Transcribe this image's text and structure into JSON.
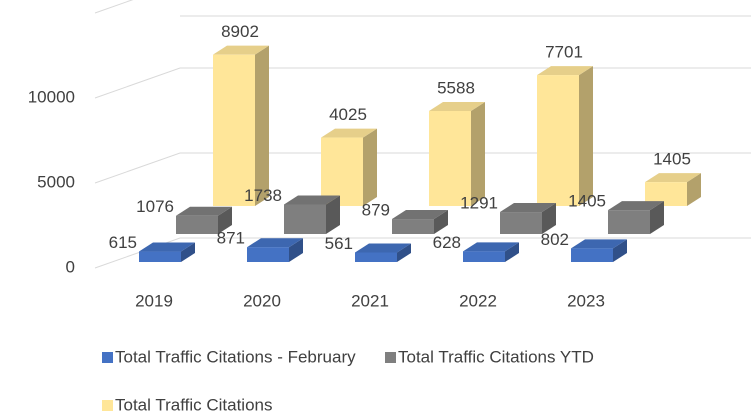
{
  "chart_data": {
    "type": "bar3d",
    "categories": [
      "2019",
      "2020",
      "2021",
      "2022",
      "2023"
    ],
    "series": [
      {
        "name": "Total Traffic Citations - February",
        "color": "#4472c4",
        "values": [
          615,
          871,
          561,
          628,
          802
        ]
      },
      {
        "name": "Total Traffic Citations YTD",
        "color": "#7f7f7f",
        "values": [
          1076,
          1738,
          879,
          1291,
          1405
        ]
      },
      {
        "name": "Total Traffic Citations",
        "color": "#ffe699",
        "values": [
          8902,
          4025,
          5588,
          7701,
          1405
        ]
      }
    ],
    "ylim": [
      0,
      15000
    ],
    "yticks": [
      0,
      5000,
      10000
    ],
    "grid": true
  }
}
